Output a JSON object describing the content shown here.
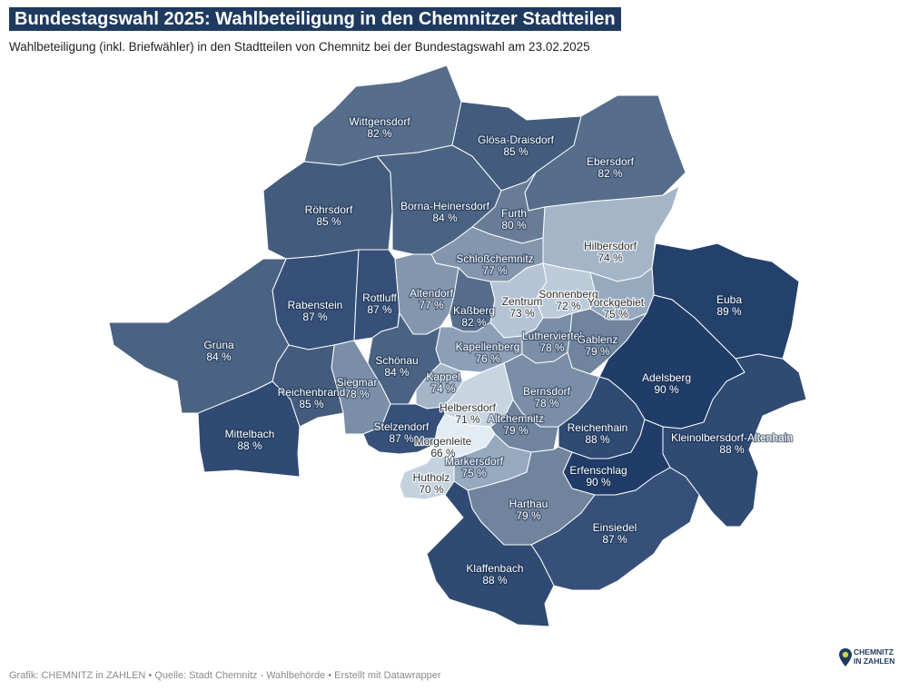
{
  "header": {
    "title": "Bundestagswahl 2025: Wahlbeteiligung in den Chemnitzer Stadtteilen",
    "subtitle": "Wahlbeteiligung (inkl. Briefwähler) in den Stadtteilen von Chemnitz bei der Bundestagswahl am 23.02.2025"
  },
  "footer": {
    "credit": "Grafik: CHEMNITZ in ZAHLEN • Quelle: Stadt Chemnitz - Wahlbehörde • Erstellt mit Datawrapper"
  },
  "logo": {
    "line1": "CHEMNITZ",
    "line2": "IN ZAHLEN",
    "icon": "pin-logo-icon"
  },
  "colors": {
    "c66": "#e4ecf3",
    "c70": "#c4d2df",
    "c71": "#c8d5e1",
    "c72": "#bccbd9",
    "c73": "#b4c4d4",
    "c74": "#a4b5c8",
    "c75": "#96a9be",
    "c76": "#8c9fb6",
    "c77": "#8496ae",
    "c78": "#7a8ea7",
    "c79": "#70849e",
    "c80": "#687c97",
    "c82": "#566d8b",
    "c84": "#4b6383",
    "c85": "#435b7c",
    "c87": "#36507a",
    "c88": "#2f4a73",
    "c89": "#24416c",
    "c90": "#203c68"
  },
  "map_data": {
    "metric": "Wahlbeteiligung",
    "unit": "%",
    "districts": [
      {
        "name": "Wittgensdorf",
        "value": "82 %"
      },
      {
        "name": "Glösa-Draisdorf",
        "value": "85 %"
      },
      {
        "name": "Ebersdorf",
        "value": "82 %"
      },
      {
        "name": "Röhrsdorf",
        "value": "85 %"
      },
      {
        "name": "Borna-Heinersdorf",
        "value": "84 %"
      },
      {
        "name": "Furth",
        "value": "80 %"
      },
      {
        "name": "Hilbersdorf",
        "value": "74 %"
      },
      {
        "name": "Schloßchemnitz",
        "value": "77 %"
      },
      {
        "name": "Euba",
        "value": "89 %"
      },
      {
        "name": "Rabenstein",
        "value": "87 %"
      },
      {
        "name": "Rottluff",
        "value": "87 %"
      },
      {
        "name": "Altendorf",
        "value": "77 %"
      },
      {
        "name": "Kaßberg",
        "value": "82 %"
      },
      {
        "name": "Zentrum",
        "value": "73 %"
      },
      {
        "name": "Sonnenberg",
        "value": "72 %"
      },
      {
        "name": "Yorckgebiet",
        "value": "75 %"
      },
      {
        "name": "Grüna",
        "value": "84 %"
      },
      {
        "name": "Lutherviertel",
        "value": "78 %"
      },
      {
        "name": "Gablenz",
        "value": "79 %"
      },
      {
        "name": "Kapellenberg",
        "value": "76 %"
      },
      {
        "name": "Schönau",
        "value": "84 %"
      },
      {
        "name": "Adelsberg",
        "value": "90 %"
      },
      {
        "name": "Siegmar",
        "value": "78 %"
      },
      {
        "name": "Kappel",
        "value": "74 %"
      },
      {
        "name": "Reichenbrand",
        "value": "85 %"
      },
      {
        "name": "Bernsdorf",
        "value": "78 %"
      },
      {
        "name": "Helbersdorf",
        "value": "71 %"
      },
      {
        "name": "Altchemnitz",
        "value": "79 %"
      },
      {
        "name": "Reichenhain",
        "value": "88 %"
      },
      {
        "name": "Mittelbach",
        "value": "88 %"
      },
      {
        "name": "Stelzendorf",
        "value": "87 %"
      },
      {
        "name": "Morgenleite",
        "value": "66 %"
      },
      {
        "name": "Kleinolbersdorf-Altenhain",
        "value": "88 %"
      },
      {
        "name": "Markersdorf",
        "value": "75 %"
      },
      {
        "name": "Erfenschlag",
        "value": "90 %"
      },
      {
        "name": "Hutholz",
        "value": "70 %"
      },
      {
        "name": "Harthau",
        "value": "79 %"
      },
      {
        "name": "Einsiedel",
        "value": "87 %"
      },
      {
        "name": "Klaffenbach",
        "value": "88 %"
      }
    ]
  }
}
